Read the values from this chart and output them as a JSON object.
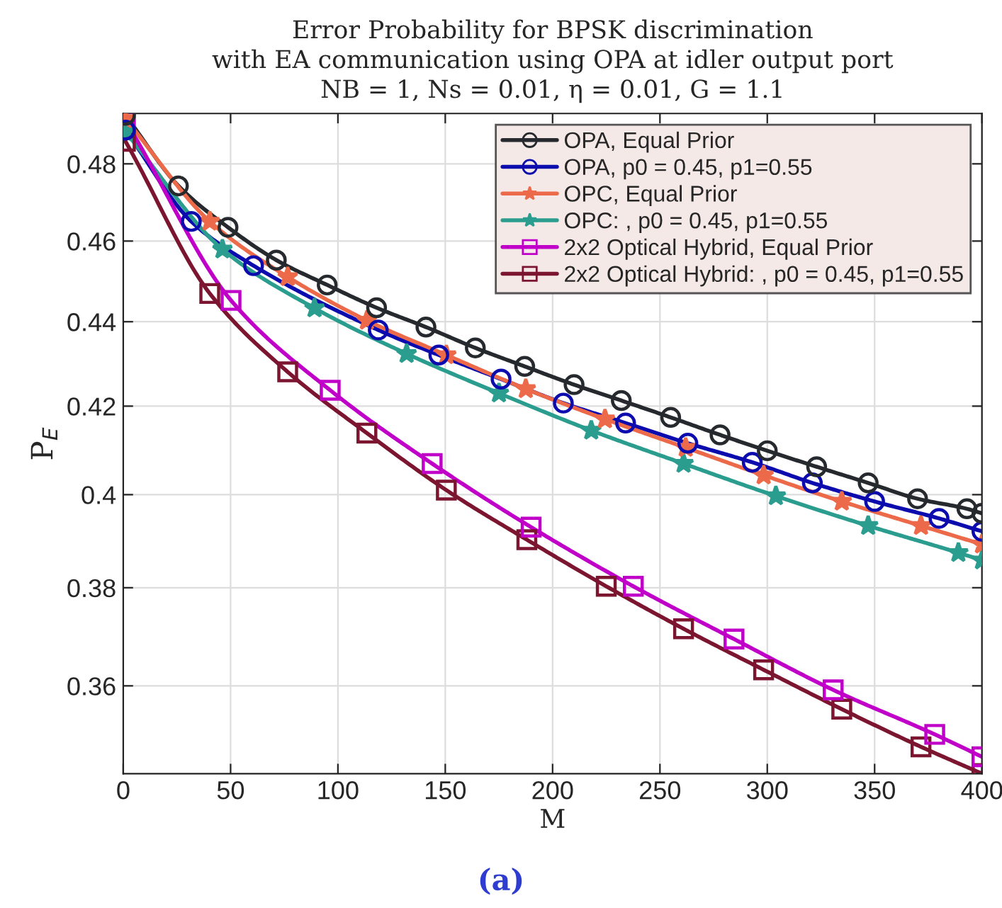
{
  "chart_data": {
    "type": "line",
    "title": "Error Probability for BPSK discrimination\nwith EA communication using OPA at idler output port\nNB = 1, Ns = 0.01, η = 0.01, G = 1.1",
    "xlabel": "M",
    "ylabel": "P$_{E}$",
    "annotations": [
      "(a)"
    ],
    "xlim": [
      0,
      400
    ],
    "xticks": [
      0,
      50,
      100,
      150,
      200,
      250,
      300,
      350,
      400
    ],
    "ylim": [
      0.343,
      0.4935
    ],
    "yticks": [
      0.36,
      0.38,
      0.4,
      0.42,
      0.44,
      0.46,
      0.48
    ],
    "log": true,
    "grid": true,
    "legend": "top right",
    "series": [
      {
        "name": "OPA, Equal Prior",
        "color": "#262a2e",
        "marker": "circle",
        "x": [
          1,
          25.7,
          48.8,
          71.3,
          95,
          118,
          141,
          164,
          187,
          210,
          232,
          255,
          278,
          300,
          323,
          347,
          370,
          393,
          400
        ],
        "values": [
          0.493,
          0.4742,
          0.4635,
          0.4552,
          0.449,
          0.4434,
          0.4387,
          0.4337,
          0.4293,
          0.425,
          0.4213,
          0.4174,
          0.4134,
          0.4098,
          0.4062,
          0.4026,
          0.3991,
          0.3969,
          0.3959
        ]
      },
      {
        "name": "OPA, p0 = 0.45, p1=0.55",
        "color": "#0c0cae",
        "marker": "circle",
        "x": [
          1,
          31.7,
          60.7,
          118.8,
          147,
          176,
          205,
          234,
          263,
          293,
          321,
          350,
          380,
          400
        ],
        "values": [
          0.489,
          0.465,
          0.4538,
          0.438,
          0.432,
          0.4263,
          0.4207,
          0.4161,
          0.4115,
          0.4072,
          0.4026,
          0.3985,
          0.3948,
          0.392
        ]
      },
      {
        "name": "OPC, Equal Prior",
        "color": "#ec6a4a",
        "marker": "star",
        "x": [
          1,
          40.3,
          76.6,
          113.5,
          150.5,
          187.5,
          224.4,
          262,
          298.3,
          334.7,
          371.6,
          400
        ],
        "values": [
          0.492,
          0.465,
          0.451,
          0.4403,
          0.432,
          0.424,
          0.417,
          0.4105,
          0.4043,
          0.3985,
          0.3932,
          0.3892
        ]
      },
      {
        "name": "OPC: , p0 = 0.45, p1=0.55",
        "color": "#2a9d8f",
        "marker": "star",
        "x": [
          1,
          46.2,
          89.1,
          132,
          175,
          218,
          261,
          304,
          347,
          389,
          400
        ],
        "values": [
          0.4885,
          0.4579,
          0.4433,
          0.4323,
          0.423,
          0.4144,
          0.4069,
          0.3997,
          0.3932,
          0.3874,
          0.3858
        ]
      },
      {
        "name": "2x2 Optical Hybrid, Equal Prior",
        "color": "#c000c8",
        "marker": "square",
        "x": [
          1,
          50.2,
          96.4,
          143.9,
          190,
          237.6,
          284.5,
          330.7,
          378,
          400
        ],
        "values": [
          0.4915,
          0.4452,
          0.4237,
          0.4069,
          0.3929,
          0.3803,
          0.3694,
          0.3592,
          0.3505,
          0.3462
        ]
      },
      {
        "name": "2x2 Optical Hybrid: , p0 = 0.45, p1=0.55",
        "color": "#7b1530",
        "marker": "square",
        "x": [
          1,
          40.3,
          76.6,
          113.5,
          150.5,
          188,
          225,
          261,
          298.3,
          334.7,
          371.6,
          400
        ],
        "values": [
          0.486,
          0.4469,
          0.428,
          0.4138,
          0.401,
          0.3902,
          0.3803,
          0.3715,
          0.3632,
          0.3554,
          0.3481,
          0.343
        ]
      }
    ]
  }
}
